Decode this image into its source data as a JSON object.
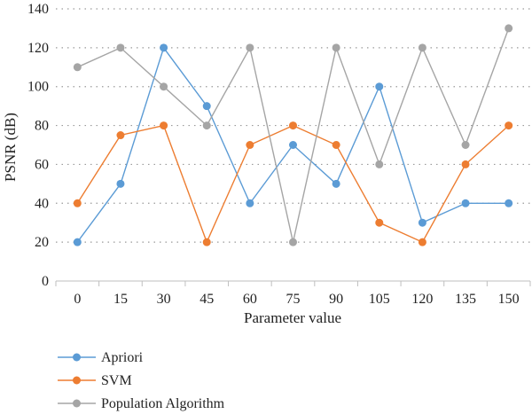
{
  "chart_data": {
    "type": "line",
    "xlabel": "Parameter value",
    "ylabel": "PSNR (dB)",
    "ylim": [
      0,
      140
    ],
    "yticks": [
      0,
      20,
      40,
      60,
      80,
      100,
      120,
      140
    ],
    "categories": [
      "0",
      "15",
      "30",
      "45",
      "60",
      "75",
      "90",
      "105",
      "120",
      "135",
      "150"
    ],
    "grid": "horizontal dotted",
    "legend_position": "bottom-left",
    "series": [
      {
        "name": "Apriori",
        "color": "#5B9BD5",
        "values": [
          20,
          50,
          120,
          90,
          40,
          70,
          50,
          100,
          30,
          40,
          40
        ]
      },
      {
        "name": "SVM",
        "color": "#ED7D31",
        "values": [
          40,
          75,
          80,
          20,
          70,
          80,
          70,
          30,
          20,
          60,
          80
        ]
      },
      {
        "name": "Population Algorithm",
        "color": "#A5A5A5",
        "values": [
          110,
          120,
          100,
          80,
          120,
          20,
          120,
          60,
          120,
          70,
          130
        ]
      }
    ]
  }
}
